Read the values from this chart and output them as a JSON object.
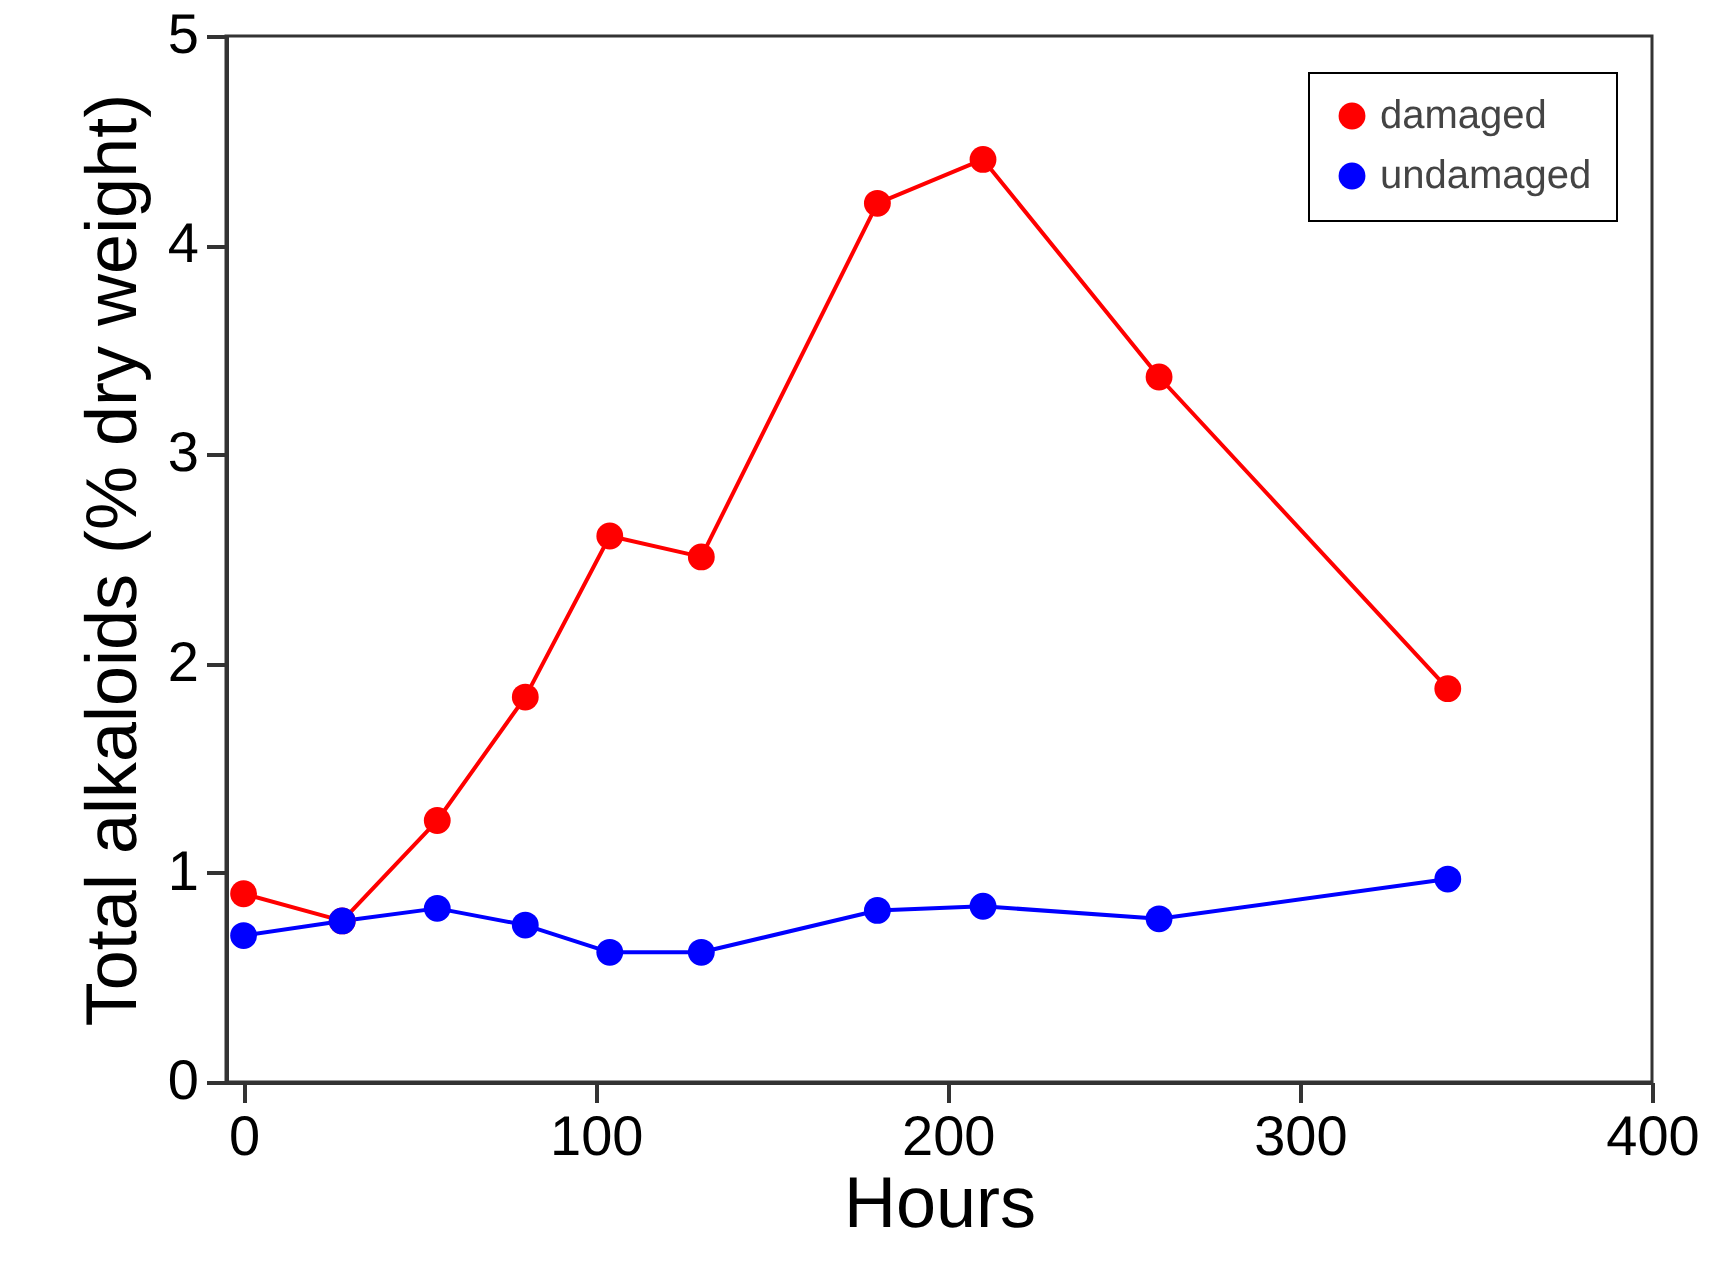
{
  "chart_data": {
    "type": "line",
    "xlabel": "Hours",
    "ylabel": "Total alkaloids (% dry weight)",
    "xlim": [
      -5,
      400
    ],
    "xticks": [
      0,
      100,
      200,
      300,
      400
    ],
    "ylim": [
      0,
      5
    ],
    "yticks": [
      0,
      1,
      2,
      3,
      4,
      5
    ],
    "x": [
      0,
      28,
      55,
      80,
      104,
      130,
      180,
      210,
      260,
      342
    ],
    "series": [
      {
        "name": "damaged",
        "color": "#ff0000",
        "values": [
          0.9,
          0.77,
          1.25,
          1.84,
          2.61,
          2.51,
          4.2,
          4.41,
          3.37,
          1.88
        ]
      },
      {
        "name": "undamaged",
        "color": "#0000ff",
        "values": [
          0.7,
          0.77,
          0.83,
          0.75,
          0.62,
          0.62,
          0.82,
          0.84,
          0.78,
          0.97
        ]
      }
    ],
    "legend": "top right",
    "marker": "circle",
    "grid": false,
    "line_style": "solid"
  }
}
